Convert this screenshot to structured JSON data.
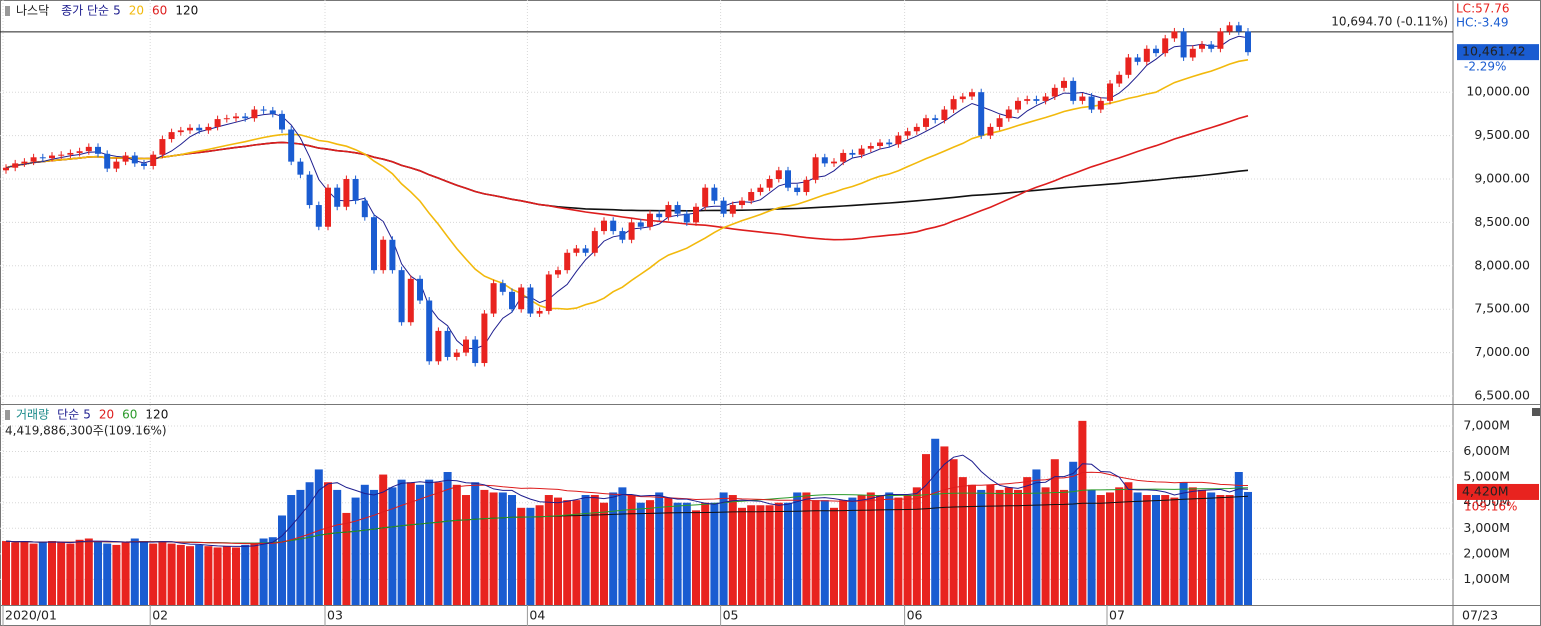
{
  "header": {
    "symbol": "나스닥",
    "ma_label": "종가 단순",
    "date": "07/23"
  },
  "chart_data": [
    {
      "type": "candlestick",
      "up_color": "#e8231f",
      "down_color": "#1a5cd1",
      "categories": [
        "2020/01",
        null,
        null,
        null,
        null,
        null,
        null,
        null,
        null,
        null,
        null,
        null,
        null,
        null,
        null,
        null,
        "02",
        null,
        null,
        null,
        null,
        null,
        null,
        null,
        null,
        null,
        null,
        null,
        null,
        null,
        null,
        null,
        null,
        null,
        null,
        "03",
        null,
        null,
        null,
        null,
        null,
        null,
        null,
        null,
        null,
        null,
        null,
        null,
        null,
        null,
        null,
        null,
        null,
        null,
        null,
        null,
        null,
        "04",
        null,
        null,
        null,
        null,
        null,
        null,
        null,
        null,
        null,
        null,
        null,
        null,
        null,
        null,
        null,
        null,
        null,
        null,
        null,
        null,
        "05",
        null,
        null,
        null,
        null,
        null,
        null,
        null,
        null,
        null,
        null,
        null,
        null,
        null,
        null,
        null,
        null,
        null,
        null,
        null,
        "06",
        null,
        null,
        null,
        null,
        null,
        null,
        null,
        null,
        null,
        null,
        null,
        null,
        null,
        null,
        null,
        null,
        null,
        null,
        null,
        null,
        null,
        "07",
        null,
        null,
        null,
        null,
        null,
        null,
        null,
        null,
        null,
        null,
        null,
        null,
        null,
        null,
        null
      ],
      "open": [
        9100,
        9130,
        9180,
        9200,
        9250,
        9240,
        9270,
        9280,
        9300,
        9320,
        9370,
        9290,
        9120,
        9200,
        9270,
        9180,
        9150,
        9280,
        9460,
        9540,
        9560,
        9590,
        9560,
        9600,
        9690,
        9700,
        9720,
        9700,
        9800,
        9790,
        9750,
        9570,
        9200,
        9050,
        8700,
        8450,
        8900,
        8680,
        9000,
        8750,
        8560,
        7950,
        8300,
        7950,
        7350,
        7850,
        7600,
        6900,
        7250,
        6950,
        7000,
        7150,
        6880,
        7450,
        7800,
        7700,
        7500,
        7750,
        7450,
        7480,
        7900,
        7950,
        8150,
        8200,
        8150,
        8400,
        8520,
        8400,
        8300,
        8500,
        8450,
        8600,
        8560,
        8700,
        8600,
        8500,
        8680,
        8900,
        8750,
        8600,
        8700,
        8750,
        8850,
        8900,
        9000,
        9100,
        8900,
        8850,
        8990,
        9250,
        9180,
        9200,
        9300,
        9280,
        9350,
        9380,
        9420,
        9400,
        9500,
        9550,
        9600,
        9700,
        9680,
        9800,
        9920,
        9950,
        10000,
        9500,
        9600,
        9700,
        9800,
        9900,
        9920,
        9900,
        9950,
        10050,
        10130,
        9900,
        9950,
        9800,
        9900,
        10100,
        10200,
        10400,
        10350,
        10500,
        10450,
        10620,
        10700,
        10400,
        10500,
        10550,
        10500,
        10700,
        10770,
        10700
      ],
      "high": [
        9170,
        9220,
        9240,
        9290,
        9290,
        9310,
        9320,
        9340,
        9360,
        9410,
        9410,
        9330,
        9240,
        9310,
        9310,
        9220,
        9320,
        9500,
        9580,
        9600,
        9630,
        9630,
        9640,
        9730,
        9740,
        9760,
        9760,
        9840,
        9840,
        9830,
        9790,
        9610,
        9240,
        9090,
        8740,
        8940,
        8940,
        9040,
        9040,
        8790,
        8600,
        8340,
        8340,
        7990,
        7890,
        7890,
        7640,
        7290,
        7290,
        7040,
        7190,
        7190,
        7490,
        7840,
        7840,
        7740,
        7790,
        7790,
        7520,
        7940,
        7990,
        8190,
        8240,
        8240,
        8440,
        8560,
        8560,
        8440,
        8540,
        8540,
        8640,
        8640,
        8740,
        8740,
        8640,
        8720,
        8940,
        8940,
        8790,
        8740,
        8790,
        8890,
        8940,
        9040,
        9140,
        9140,
        8940,
        9030,
        9290,
        9290,
        9240,
        9340,
        9340,
        9390,
        9420,
        9460,
        9460,
        9540,
        9590,
        9640,
        9740,
        9740,
        9840,
        9960,
        9990,
        10040,
        10040,
        9640,
        9740,
        9840,
        9940,
        9960,
        9960,
        9990,
        10090,
        10170,
        10170,
        9990,
        9990,
        9940,
        10140,
        10240,
        10440,
        10440,
        10540,
        10540,
        10660,
        10740,
        10740,
        10540,
        10590,
        10590,
        10740,
        10810,
        10810,
        10740
      ],
      "low": [
        9060,
        9090,
        9140,
        9160,
        9200,
        9200,
        9230,
        9240,
        9260,
        9280,
        9250,
        9080,
        9080,
        9160,
        9140,
        9110,
        9110,
        9240,
        9420,
        9500,
        9520,
        9520,
        9520,
        9560,
        9650,
        9660,
        9660,
        9660,
        9750,
        9710,
        9530,
        9160,
        9010,
        8660,
        8410,
        8410,
        8640,
        8640,
        8710,
        8520,
        7910,
        7910,
        7910,
        7310,
        7310,
        7560,
        6860,
        6860,
        6910,
        6910,
        6960,
        6840,
        6840,
        7410,
        7660,
        7460,
        7460,
        7410,
        7410,
        7440,
        7860,
        7910,
        8110,
        8110,
        8110,
        8360,
        8360,
        8260,
        8260,
        8410,
        8410,
        8520,
        8520,
        8560,
        8460,
        8460,
        8640,
        8710,
        8560,
        8560,
        8660,
        8710,
        8810,
        8860,
        8960,
        8860,
        8810,
        8810,
        8950,
        9140,
        9140,
        9160,
        9240,
        9240,
        9310,
        9340,
        9360,
        9360,
        9460,
        9510,
        9560,
        9640,
        9640,
        9760,
        9880,
        9910,
        9460,
        9460,
        9560,
        9660,
        9760,
        9860,
        9860,
        9860,
        9910,
        10010,
        9860,
        9860,
        9760,
        9760,
        9860,
        10060,
        10160,
        10310,
        10310,
        10410,
        10410,
        10580,
        10360,
        10360,
        10460,
        10460,
        10460,
        10660,
        10660,
        10421
      ],
      "close": [
        9130,
        9180,
        9200,
        9250,
        9240,
        9270,
        9280,
        9300,
        9320,
        9370,
        9290,
        9120,
        9200,
        9270,
        9180,
        9150,
        9280,
        9460,
        9540,
        9560,
        9590,
        9560,
        9600,
        9690,
        9700,
        9720,
        9700,
        9800,
        9790,
        9750,
        9570,
        9200,
        9050,
        8700,
        8450,
        8900,
        8680,
        9000,
        8750,
        8560,
        7950,
        8300,
        7950,
        7350,
        7850,
        7600,
        6900,
        7250,
        6950,
        7000,
        7150,
        6880,
        7450,
        7800,
        7700,
        7500,
        7750,
        7450,
        7480,
        7900,
        7950,
        8150,
        8200,
        8150,
        8400,
        8520,
        8400,
        8300,
        8500,
        8450,
        8600,
        8560,
        8700,
        8600,
        8500,
        8680,
        8900,
        8750,
        8600,
        8700,
        8750,
        8850,
        8900,
        9000,
        9100,
        8900,
        8850,
        8990,
        9250,
        9180,
        9200,
        9300,
        9280,
        9350,
        9380,
        9420,
        9400,
        9500,
        9550,
        9600,
        9700,
        9680,
        9800,
        9920,
        9950,
        10000,
        9500,
        9600,
        9700,
        9800,
        9900,
        9920,
        9900,
        9950,
        10050,
        10130,
        9900,
        9950,
        9800,
        9900,
        10100,
        10200,
        10400,
        10350,
        10500,
        10450,
        10620,
        10700,
        10400,
        10500,
        10550,
        10500,
        10700,
        10770,
        10700,
        10461
      ],
      "ylim": [
        6408,
        11062
      ],
      "yticks": [
        {
          "value": 6500,
          "label": "6,500.00"
        },
        {
          "value": 7000,
          "label": "7,000.00"
        },
        {
          "value": 7500,
          "label": "7,500.00"
        },
        {
          "value": 8000,
          "label": "8,000.00"
        },
        {
          "value": 8500,
          "label": "8,500.00"
        },
        {
          "value": 9000,
          "label": "9,000.00"
        },
        {
          "value": 9500,
          "label": "9,500.00"
        },
        {
          "value": 10000,
          "label": "10,000.00"
        }
      ],
      "ma": [
        {
          "period": 5,
          "color": "#1f1f8f"
        },
        {
          "period": 20,
          "color": "#f2b90c"
        },
        {
          "period": 60,
          "color": "#dd1d1d"
        },
        {
          "period": 120,
          "color": "#111111"
        }
      ],
      "reference_line": {
        "value": 10694.7,
        "label": "10,694.70 (-0.11%)"
      },
      "last_price": {
        "value": 10461.42,
        "label": "10,461.42"
      },
      "change_label": "-2.29%",
      "lc_label": "LC:57.76",
      "hc_label": "HC:-3.49"
    },
    {
      "type": "bar",
      "title": "거래량",
      "ma_label": "단순",
      "summary": "4,419,886,300주(109.16%)",
      "up_color": "#e8231f",
      "down_color": "#1a5cd1",
      "values": [
        2500,
        2450,
        2500,
        2400,
        2450,
        2500,
        2450,
        2400,
        2550,
        2600,
        2500,
        2400,
        2350,
        2450,
        2600,
        2500,
        2400,
        2450,
        2400,
        2350,
        2300,
        2350,
        2300,
        2250,
        2300,
        2250,
        2350,
        2400,
        2600,
        2650,
        3500,
        4300,
        4500,
        4800,
        5300,
        4800,
        4500,
        3600,
        4200,
        4700,
        4500,
        5100,
        4600,
        4900,
        4800,
        4700,
        4900,
        4800,
        5200,
        4700,
        4300,
        4800,
        4500,
        4400,
        4400,
        4300,
        3800,
        3800,
        3900,
        4300,
        4200,
        4100,
        4100,
        4300,
        4300,
        4000,
        4400,
        4600,
        4300,
        4000,
        4100,
        4400,
        4200,
        4000,
        4000,
        3700,
        4000,
        4000,
        4400,
        4300,
        3800,
        3900,
        3900,
        3900,
        4000,
        4000,
        4400,
        4400,
        4100,
        4100,
        3800,
        4100,
        4200,
        4300,
        4400,
        4300,
        4400,
        4200,
        4300,
        4600,
        5900,
        6500,
        6200,
        5700,
        5000,
        4700,
        4500,
        4700,
        4500,
        4600,
        4500,
        5000,
        5300,
        4600,
        5700,
        4500,
        5600,
        7200,
        4500,
        4300,
        4400,
        4600,
        4800,
        4400,
        4300,
        4300,
        4300,
        4200,
        4800,
        4600,
        4500,
        4400,
        4300,
        4300,
        5200,
        4420
      ],
      "ylim": [
        0,
        7820
      ],
      "yticks": [
        {
          "value": 1000,
          "label": "1,000M"
        },
        {
          "value": 2000,
          "label": "2,000M"
        },
        {
          "value": 3000,
          "label": "3,000M"
        },
        {
          "value": 4000,
          "label": "4,000M"
        },
        {
          "value": 5000,
          "label": "5,000M"
        },
        {
          "value": 6000,
          "label": "6,000M"
        },
        {
          "value": 7000,
          "label": "7,000M"
        }
      ],
      "ma": [
        {
          "period": 5,
          "color": "#1f1f8f"
        },
        {
          "period": 20,
          "color": "#dd1d1d"
        },
        {
          "period": 60,
          "color": "#2a9a2a"
        },
        {
          "period": 120,
          "color": "#111111"
        }
      ],
      "last_label": {
        "value": 4420,
        "label": "4,420M"
      },
      "ratio_label": "109.16%"
    }
  ]
}
